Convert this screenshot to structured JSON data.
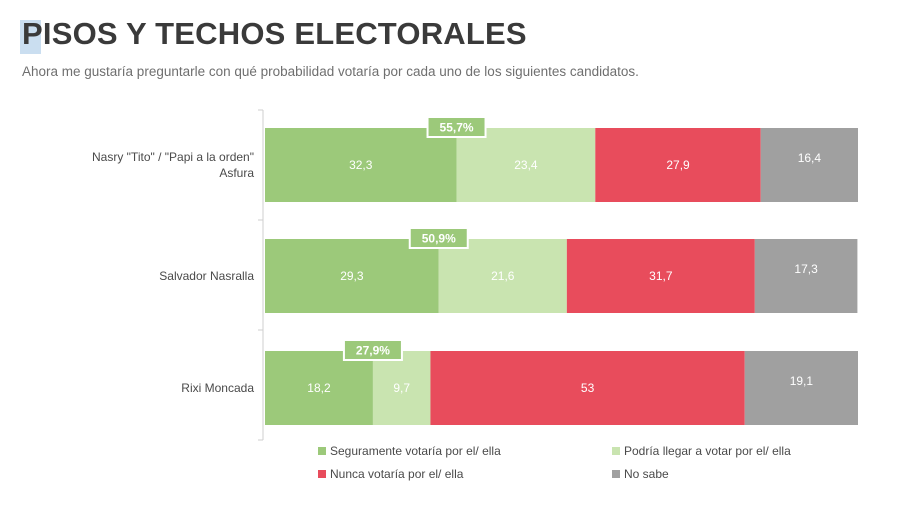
{
  "header": {
    "title": "PISOS Y TECHOS ELECTORALES",
    "subtitle": "Ahora me gustaría preguntarle con qué probabilidad votaría por cada uno de los siguientes candidatos."
  },
  "chart_data": {
    "type": "bar",
    "orientation": "horizontal",
    "stacked": true,
    "categories": [
      "Nasry \"Tito\" / \"Papi a la orden\" Asfura",
      "Salvador Nasralla",
      "Rixi Moncada"
    ],
    "category_lines": [
      [
        "Nasry \"Tito\" / \"Papi a la orden\"",
        "Asfura"
      ],
      [
        "Salvador Nasralla"
      ],
      [
        "Rixi Moncada"
      ]
    ],
    "series": [
      {
        "name": "Seguramente votaría por el/ ella",
        "color": "#9cc97a",
        "values": [
          32.3,
          29.3,
          18.2
        ],
        "labels": [
          "32,3",
          "29,3",
          "18,2"
        ]
      },
      {
        "name": "Podría llegar a votar por el/ ella",
        "color": "#c9e4b0",
        "values": [
          23.4,
          21.6,
          9.7
        ],
        "labels": [
          "23,4",
          "21,6",
          "9,7"
        ]
      },
      {
        "name": "Nunca votaría por el/ ella",
        "color": "#e84c5c",
        "values": [
          27.9,
          31.7,
          53
        ],
        "labels": [
          "27,9",
          "31,7",
          "53"
        ]
      },
      {
        "name": "No sabe",
        "color": "#a0a0a0",
        "values": [
          16.4,
          17.3,
          19.1
        ],
        "labels": [
          "16,4",
          "17,3",
          "19,1"
        ]
      }
    ],
    "ceiling_totals": {
      "values": [
        55.7,
        50.9,
        27.9
      ],
      "labels": [
        "55,7%",
        "50,9%",
        "27,9%"
      ],
      "color": "#9cc97a"
    },
    "xlim": [
      0,
      100
    ],
    "grid": false,
    "legend_position": "bottom"
  }
}
